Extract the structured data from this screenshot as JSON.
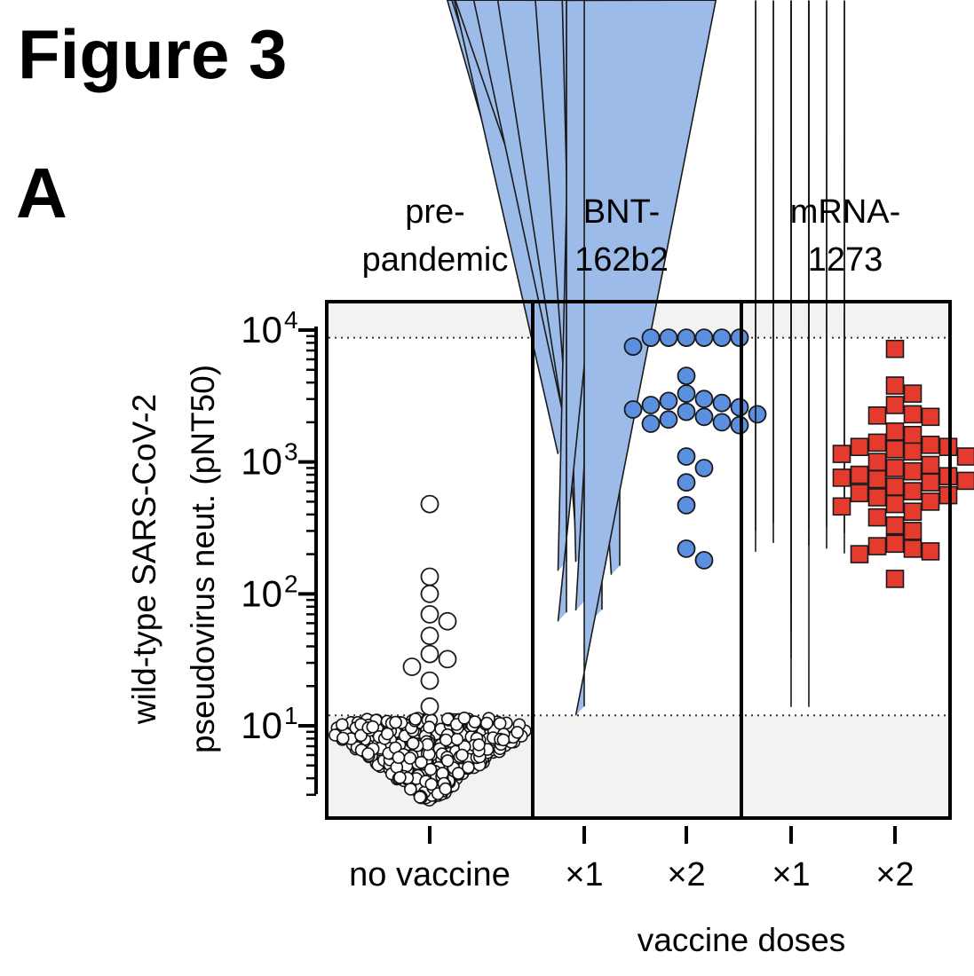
{
  "figure": {
    "title": "Figure 3",
    "panel_label": "A"
  },
  "chart_data": {
    "type": "scatter",
    "y_scale": "log",
    "ylim": [
      2.5,
      22000
    ],
    "ylabel_line1": "wild-type SARS-CoV-2",
    "ylabel_line2": "pseudovirus neut. (pNT50)",
    "xlabel": "vaccine doses",
    "y_ticks": [
      {
        "value": 10,
        "base": "10",
        "exp": "1"
      },
      {
        "value": 100,
        "base": "10",
        "exp": "2"
      },
      {
        "value": 1000,
        "base": "10",
        "exp": "3"
      },
      {
        "value": 10000,
        "base": "10",
        "exp": "4"
      }
    ],
    "reference_lines": [
      12,
      8748
    ],
    "groups": [
      {
        "header_line1": "pre-",
        "header_line2": "pandemic"
      },
      {
        "header_line1": "BNT-",
        "header_line2": "162b2"
      },
      {
        "header_line1": "mRNA-",
        "header_line2": "1273"
      }
    ],
    "categories": [
      {
        "label": "no vaccine",
        "group": 0,
        "marker": "circle",
        "color": "#ffffff",
        "values": [
          480,
          135,
          100,
          70,
          62,
          48,
          35,
          32,
          28,
          22,
          14
        ]
      },
      {
        "label": "×1",
        "group": 1,
        "marker": "triangle",
        "color": "#9dbbe9",
        "values": [
          1300,
          1200,
          1150,
          1130,
          820,
          540,
          280,
          175,
          160,
          150,
          140,
          75,
          65,
          62,
          12
        ]
      },
      {
        "label": "×2",
        "group": 1,
        "marker": "circle",
        "color": "#5b8fe0",
        "values": [
          8748,
          8748,
          8748,
          8748,
          8748,
          8748,
          7500,
          4500,
          3300,
          3000,
          2900,
          2800,
          2700,
          2600,
          2500,
          2400,
          2300,
          2200,
          2100,
          2000,
          1950,
          1900,
          1100,
          900,
          700,
          470,
          220,
          180
        ]
      },
      {
        "label": "×1",
        "group": 2,
        "marker": "diamond",
        "color": "#efa3a3",
        "values": [
          8748,
          8748,
          2700,
          640,
          600,
          420,
          360,
          310,
          300,
          280,
          270,
          260,
          250,
          230,
          210,
          200,
          190,
          180,
          175,
          110,
          72,
          45,
          28,
          12,
          12
        ]
      },
      {
        "label": "×2",
        "group": 2,
        "marker": "square",
        "color": "#e53b2e",
        "values": [
          7200,
          3800,
          3300,
          2700,
          2300,
          2250,
          2200,
          1700,
          1600,
          1400,
          1350,
          1300,
          1300,
          1250,
          1200,
          1150,
          1100,
          1000,
          950,
          900,
          850,
          800,
          780,
          760,
          740,
          720,
          700,
          650,
          600,
          580,
          560,
          540,
          500,
          480,
          460,
          420,
          380,
          330,
          300,
          240,
          230,
          220,
          210,
          200,
          130
        ]
      }
    ],
    "prepandemic_cluster": {
      "n": 450,
      "min": 2.7,
      "max": 11.5
    }
  }
}
